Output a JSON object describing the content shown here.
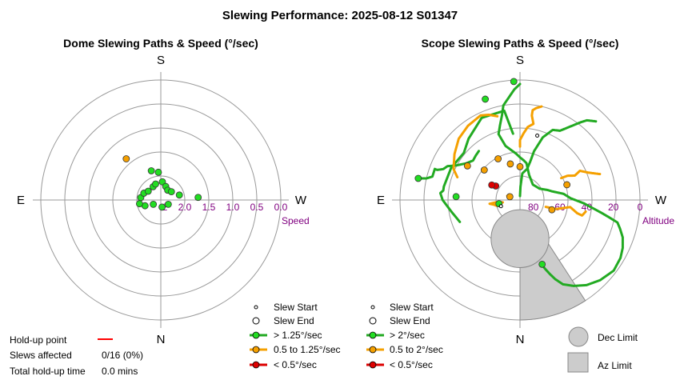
{
  "title": "Slewing Performance: 2025-08-12 S01347",
  "colors": {
    "fast": "#22aa22",
    "medium": "#f5a000",
    "slow": "#dd0000",
    "speed_label": "#800080",
    "limit_fill": "#cccccc",
    "ring": "#999999"
  },
  "chart_data": [
    {
      "type": "scatter",
      "subtype": "polar",
      "title": "Dome Slewing Paths & Speed (°/sec)",
      "compass": {
        "top": "S",
        "bottom": "N",
        "left": "E",
        "right": "W"
      },
      "radial_axis": {
        "label": "Speed",
        "ticks": [
          "2.0",
          "1.5",
          "1.0",
          "0.5",
          "0.0"
        ],
        "center_label": "2",
        "range": [
          0,
          2.5
        ]
      },
      "legend": {
        "items": [
          "Slew Start",
          "Slew End",
          "> 1.25°/sec",
          "0.5 to 1.25°/sec",
          "< 0.5°/sec"
        ]
      },
      "points": [
        {
          "az": 175,
          "speed": 1.92,
          "cat": "fast",
          "kind": "end"
        },
        {
          "az": 162,
          "speed": 1.86,
          "cat": "fast",
          "kind": "end"
        },
        {
          "az": 140,
          "speed": 1.38,
          "cat": "medium",
          "kind": "end"
        },
        {
          "az": 97,
          "speed": 2.08,
          "cat": "fast",
          "kind": "end"
        },
        {
          "az": 112,
          "speed": 2.12,
          "cat": "fast",
          "kind": "end"
        },
        {
          "az": 125,
          "speed": 2.18,
          "cat": "fast",
          "kind": "end"
        },
        {
          "az": 150,
          "speed": 2.18,
          "cat": "fast",
          "kind": "end"
        },
        {
          "az": 162,
          "speed": 2.15,
          "cat": "fast",
          "kind": "end"
        },
        {
          "az": 185,
          "speed": 2.12,
          "cat": "fast",
          "kind": "end"
        },
        {
          "az": 200,
          "speed": 2.2,
          "cat": "fast",
          "kind": "end"
        },
        {
          "az": 215,
          "speed": 2.25,
          "cat": "fast",
          "kind": "end"
        },
        {
          "az": 232,
          "speed": 2.22,
          "cat": "fast",
          "kind": "end"
        },
        {
          "az": 255,
          "speed": 2.1,
          "cat": "fast",
          "kind": "end"
        },
        {
          "az": 266,
          "speed": 1.72,
          "cat": "fast",
          "kind": "end"
        },
        {
          "az": 300,
          "speed": 2.32,
          "cat": "fast",
          "kind": "end"
        },
        {
          "az": 350,
          "speed": 2.35,
          "cat": "fast",
          "kind": "end"
        },
        {
          "az": 60,
          "speed": 2.32,
          "cat": "fast",
          "kind": "end"
        },
        {
          "az": 70,
          "speed": 2.15,
          "cat": "fast",
          "kind": "end"
        },
        {
          "az": 80,
          "speed": 2.05,
          "cat": "fast",
          "kind": "end"
        }
      ]
    },
    {
      "type": "line",
      "subtype": "polar",
      "title": "Scope Slewing Paths & Speed (°/sec)",
      "compass": {
        "top": "S",
        "bottom": "N",
        "left": "E",
        "right": "W"
      },
      "radial_axis": {
        "label": "Altitude",
        "ticks": [
          "80",
          "60",
          "40",
          "20",
          "0"
        ],
        "range": [
          0,
          90
        ]
      },
      "legend": {
        "items": [
          "Slew Start",
          "Slew End",
          "> 2°/sec",
          "0.5 to 2°/sec",
          "< 0.5°/sec",
          "Dec Limit",
          "Az Limit"
        ]
      },
      "dec_limit": {
        "center_az": 0,
        "center_alt": 61,
        "radius_deg": 14
      },
      "az_limit": {
        "az_from": 327,
        "az_to": 360,
        "alt_from": 0,
        "alt_to": 56
      },
      "paths": [
        {
          "cat": "fast",
          "az_alt": [
            [
              174,
              40
            ],
            [
              170,
              22
            ],
            [
              155,
              22
            ],
            [
              140,
              30
            ],
            [
              130,
              35
            ],
            [
              115,
              33
            ],
            [
              100,
              32
            ],
            [
              97,
              32
            ],
            [
              95,
              30
            ],
            [
              90,
              32
            ],
            [
              80,
              38
            ],
            [
              70,
              42
            ]
          ]
        },
        {
          "cat": "fast",
          "az_alt": [
            [
              180,
              3
            ],
            [
              177,
              7
            ],
            [
              170,
              18
            ],
            [
              168,
              25
            ],
            [
              165,
              32
            ],
            [
              162,
              38
            ],
            [
              163,
              42
            ],
            [
              165,
              48
            ],
            [
              175,
              55
            ],
            [
              180,
              58
            ],
            [
              185,
              60
            ],
            [
              190,
              62
            ],
            [
              200,
              70
            ],
            [
              220,
              75
            ],
            [
              240,
              73
            ],
            [
              250,
              68
            ],
            [
              255,
              65
            ],
            [
              262,
              57
            ],
            [
              268,
              52
            ],
            [
              273,
              42
            ],
            [
              276,
              36
            ],
            [
              279,
              28
            ],
            [
              281,
              22
            ],
            [
              283,
              15
            ],
            [
              286,
              12
            ],
            [
              290,
              8
            ],
            [
              295,
              5
            ],
            [
              300,
              3
            ],
            [
              307,
              2
            ],
            [
              315,
              5
            ],
            [
              322,
              9
            ],
            [
              328,
              14
            ],
            [
              333,
              19
            ],
            [
              336,
              25
            ],
            [
              338,
              30
            ],
            [
              340,
              35
            ],
            [
              341,
              38
            ]
          ]
        },
        {
          "cat": "fast",
          "az_alt": [
            [
              224,
              8
            ],
            [
              220,
              12
            ],
            [
              218,
              16
            ],
            [
              210,
              30
            ],
            [
              205,
              32
            ],
            [
              200,
              40
            ],
            [
              196,
              52
            ],
            [
              195,
              60
            ],
            [
              193,
              66
            ],
            [
              185,
              70
            ],
            [
              182,
              80
            ],
            [
              180,
              87
            ]
          ]
        },
        {
          "cat": "fast",
          "az_alt": [
            [
              102,
              12
            ],
            [
              103,
              18
            ],
            [
              105,
              22
            ],
            [
              110,
              22
            ],
            [
              110,
              24
            ],
            [
              112,
              28
            ],
            [
              115,
              30
            ],
            [
              118,
              35
            ],
            [
              124,
              41
            ],
            [
              130,
              44
            ],
            [
              135,
              43
            ],
            [
              140,
              42
            ]
          ]
        }
      ],
      "orange_paths": [
        {
          "az_alt": [
            [
              242,
              55
            ],
            [
              243,
              50
            ],
            [
              246,
              45
            ],
            [
              244,
              40
            ],
            [
              248,
              35
            ],
            [
              252,
              27
            ]
          ]
        },
        {
          "az_alt": [
            [
              180,
              50
            ],
            [
              180,
              45
            ],
            [
              183,
              40
            ],
            [
              186,
              35
            ],
            [
              190,
              32
            ],
            [
              188,
              26
            ],
            [
              188,
              22
            ],
            [
              190,
              20
            ],
            [
              193,
              18
            ]
          ]
        },
        {
          "az_alt": [
            [
              110,
              40
            ],
            [
              115,
              35
            ],
            [
              125,
              30
            ],
            [
              135,
              25
            ],
            [
              145,
              22
            ],
            [
              155,
              20
            ],
            [
              160,
              22
            ],
            [
              165,
              25
            ]
          ]
        },
        {
          "az_alt": [
            [
              285,
              70
            ],
            [
              284,
              62
            ],
            [
              280,
              56
            ],
            [
              278,
              52
            ],
            [
              283,
              46
            ],
            [
              284,
              42
            ],
            [
              280,
              40
            ]
          ]
        },
        {
          "az_alt": [
            [
              108,
              80
            ],
            [
              104,
              82
            ],
            [
              100,
              83
            ]
          ]
        },
        {
          "az_alt": [
            [
              82,
              77
            ],
            [
              85,
              73
            ],
            [
              83,
              67
            ],
            [
              80,
              70
            ],
            [
              76,
              72
            ],
            [
              73,
              75
            ]
          ]
        }
      ],
      "markers": [
        {
          "az": 177,
          "alt": 1,
          "cat": "fast",
          "kind": "end"
        },
        {
          "az": 161,
          "alt": 10,
          "cat": "fast",
          "kind": "end"
        },
        {
          "az": 102,
          "alt": 12,
          "cat": "fast",
          "kind": "end"
        },
        {
          "az": 93,
          "alt": 42,
          "cat": "fast",
          "kind": "end"
        },
        {
          "az": 341,
          "alt": 39,
          "cat": "fast",
          "kind": "end"
        },
        {
          "az": 80,
          "alt": 74,
          "cat": "fast",
          "kind": "end"
        },
        {
          "az": 287,
          "alt": 65,
          "cat": "medium",
          "kind": "end"
        },
        {
          "az": 252,
          "alt": 53,
          "cat": "medium",
          "kind": "end"
        },
        {
          "az": 123,
          "alt": 43,
          "cat": "medium",
          "kind": "end"
        },
        {
          "az": 108,
          "alt": 82,
          "cat": "medium",
          "kind": "end"
        },
        {
          "az": 165,
          "alt": 62,
          "cat": "medium",
          "kind": "end"
        },
        {
          "az": 152,
          "alt": 55,
          "cat": "medium",
          "kind": "end"
        },
        {
          "az": 130,
          "alt": 55,
          "cat": "medium",
          "kind": "end"
        },
        {
          "az": 180,
          "alt": 65,
          "cat": "medium",
          "kind": "end"
        },
        {
          "az": 120,
          "alt": 69,
          "cat": "slow",
          "kind": "end"
        },
        {
          "az": 118,
          "alt": 66,
          "cat": "slow",
          "kind": "end"
        },
        {
          "az": 72,
          "alt": 75,
          "cat": "medium",
          "kind": "start"
        },
        {
          "az": 195,
          "alt": 40,
          "cat": "fast",
          "kind": "start"
        }
      ]
    }
  ],
  "holdup": {
    "point_label": "Hold-up point",
    "slews_label": "Slews affected",
    "slews_value": "0/16 (0%)",
    "time_label": "Total hold-up time",
    "time_value": "0.0 mins"
  }
}
